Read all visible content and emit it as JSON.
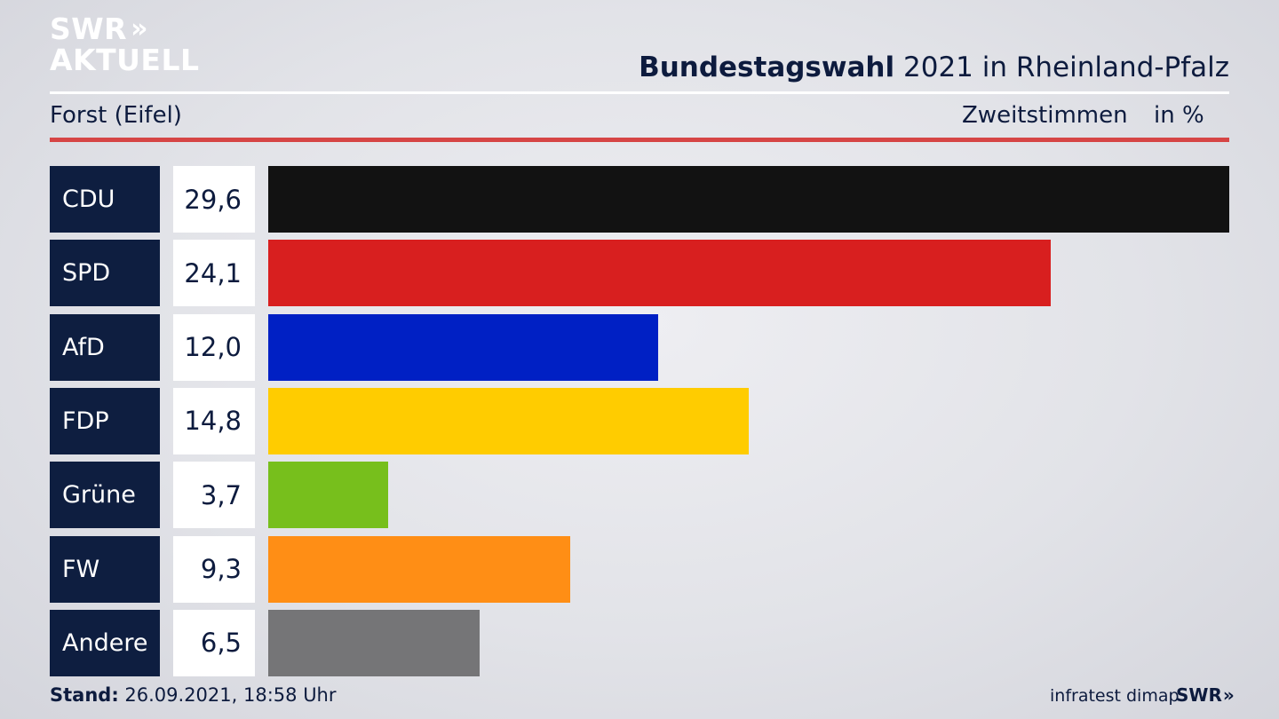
{
  "brand": {
    "logo_top": "SWR",
    "logo_arrows": "»",
    "logo_bottom": "AKTUELL"
  },
  "header": {
    "title_bold": "Bundestagswahl",
    "title_rest": "2021 in Rheinland-Pfalz",
    "region": "Forst (Eifel)",
    "measure": "Zweitstimmen",
    "unit": "in %"
  },
  "chart_data": {
    "type": "bar",
    "orientation": "horizontal",
    "categories": [
      "CDU",
      "SPD",
      "AfD",
      "FDP",
      "Grüne",
      "FW",
      "Andere"
    ],
    "values": [
      29.6,
      24.1,
      12.0,
      14.8,
      3.7,
      9.3,
      6.5
    ],
    "value_labels": [
      "29,6",
      "24,1",
      "12,0",
      "14,8",
      "3,7",
      "9,3",
      "6,5"
    ],
    "colors": [
      "#121212",
      "#d81f1f",
      "#0020c4",
      "#ffcc00",
      "#77bf1c",
      "#ff8e15",
      "#757577"
    ],
    "xlim": [
      0,
      29.6
    ]
  },
  "footer": {
    "stand_label": "Stand:",
    "stand_value": "26.09.2021, 18:58 Uhr",
    "source": "infratest dimap",
    "logo": "SWR",
    "logo_arrows": "»"
  }
}
